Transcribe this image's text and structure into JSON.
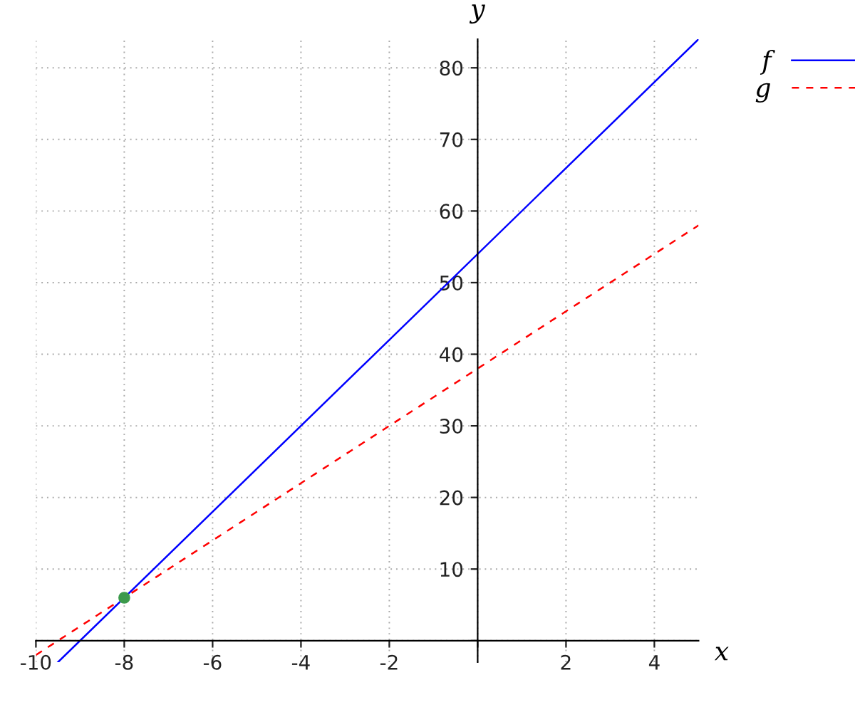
{
  "chart_data": {
    "type": "line",
    "xlabel": "x",
    "ylabel": "y",
    "xlim": [
      -10,
      5
    ],
    "ylim": [
      -3,
      84
    ],
    "xticks": [
      -10,
      -8,
      -6,
      -4,
      -2,
      {
        "value": 0,
        "label": null
      },
      2,
      4
    ],
    "yticks": [
      {
        "value": 0,
        "label": null
      },
      10,
      20,
      30,
      40,
      50,
      60,
      70,
      80
    ],
    "grid": true,
    "legend": "top right",
    "series": [
      {
        "name": "f",
        "color": "#0000ff",
        "x": [
          -9.5,
          5
        ],
        "values": [
          -3,
          84
        ],
        "line_style": "solid",
        "marker": "none"
      },
      {
        "name": "g",
        "color": "#ff0000",
        "x": [
          -10,
          5
        ],
        "values": [
          -2,
          58
        ],
        "line_style": "dashed",
        "marker": "none"
      },
      {
        "type": "scatter",
        "color": "#3c9a4c",
        "x": [
          -8
        ],
        "values": [
          6
        ],
        "marker": "circle"
      }
    ]
  }
}
